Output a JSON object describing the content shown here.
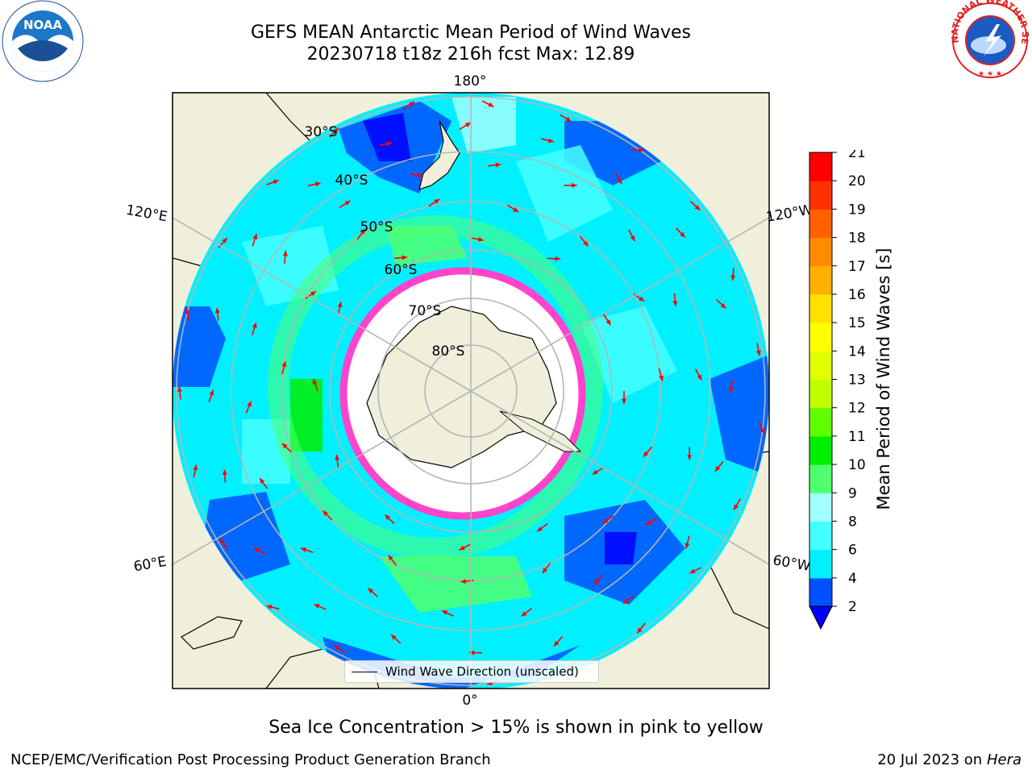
{
  "header": {
    "title_line1": "GEFS MEAN Antarctic Mean Period of Wind Waves",
    "title_line2": "20230718 t18z 216h fcst   Max: 12.89"
  },
  "logos": {
    "left": "noaa-logo",
    "right": "national-weather-service-logo",
    "left_text": "NOAA",
    "right_text": "NATIONAL WEATHER SERVICE"
  },
  "map": {
    "projection": "south-polar-stereographic",
    "longitude_labels": [
      "180°",
      "120°E",
      "120°W",
      "60°E",
      "60°W",
      "0°"
    ],
    "latitude_labels": [
      "30°S",
      "40°S",
      "50°S",
      "60°S",
      "70°S",
      "80°S"
    ],
    "land_color": "#efefdb",
    "ice_color": "#ff44cc",
    "arrow_color": "#ff0000"
  },
  "colorbar": {
    "label": "Mean Period of Wind Waves [s]",
    "ticks": [
      "2",
      "4",
      "6",
      "8",
      "9",
      "10",
      "11",
      "12",
      "13",
      "14",
      "15",
      "16",
      "17",
      "18",
      "19",
      "20",
      "21"
    ],
    "colors": [
      "#0050ff",
      "#00f0ff",
      "#45ffff",
      "#a0ffff",
      "#50ff70",
      "#00ee00",
      "#60ff00",
      "#c0ff00",
      "#e0ff00",
      "#ffff00",
      "#ffe000",
      "#ffb000",
      "#ff8c00",
      "#ff6000",
      "#ff3000",
      "#ff0000"
    ],
    "extend_color": "#0000ff"
  },
  "legend": {
    "label": "Wind Wave Direction (unscaled)"
  },
  "notes": {
    "ice": "Sea Ice Concentration > 15% is shown in pink to yellow"
  },
  "footer": {
    "left": "NCEP/EMC/Verification Post Processing Product Generation Branch",
    "date": "20 Jul 2023 on",
    "machine": "Hera"
  }
}
